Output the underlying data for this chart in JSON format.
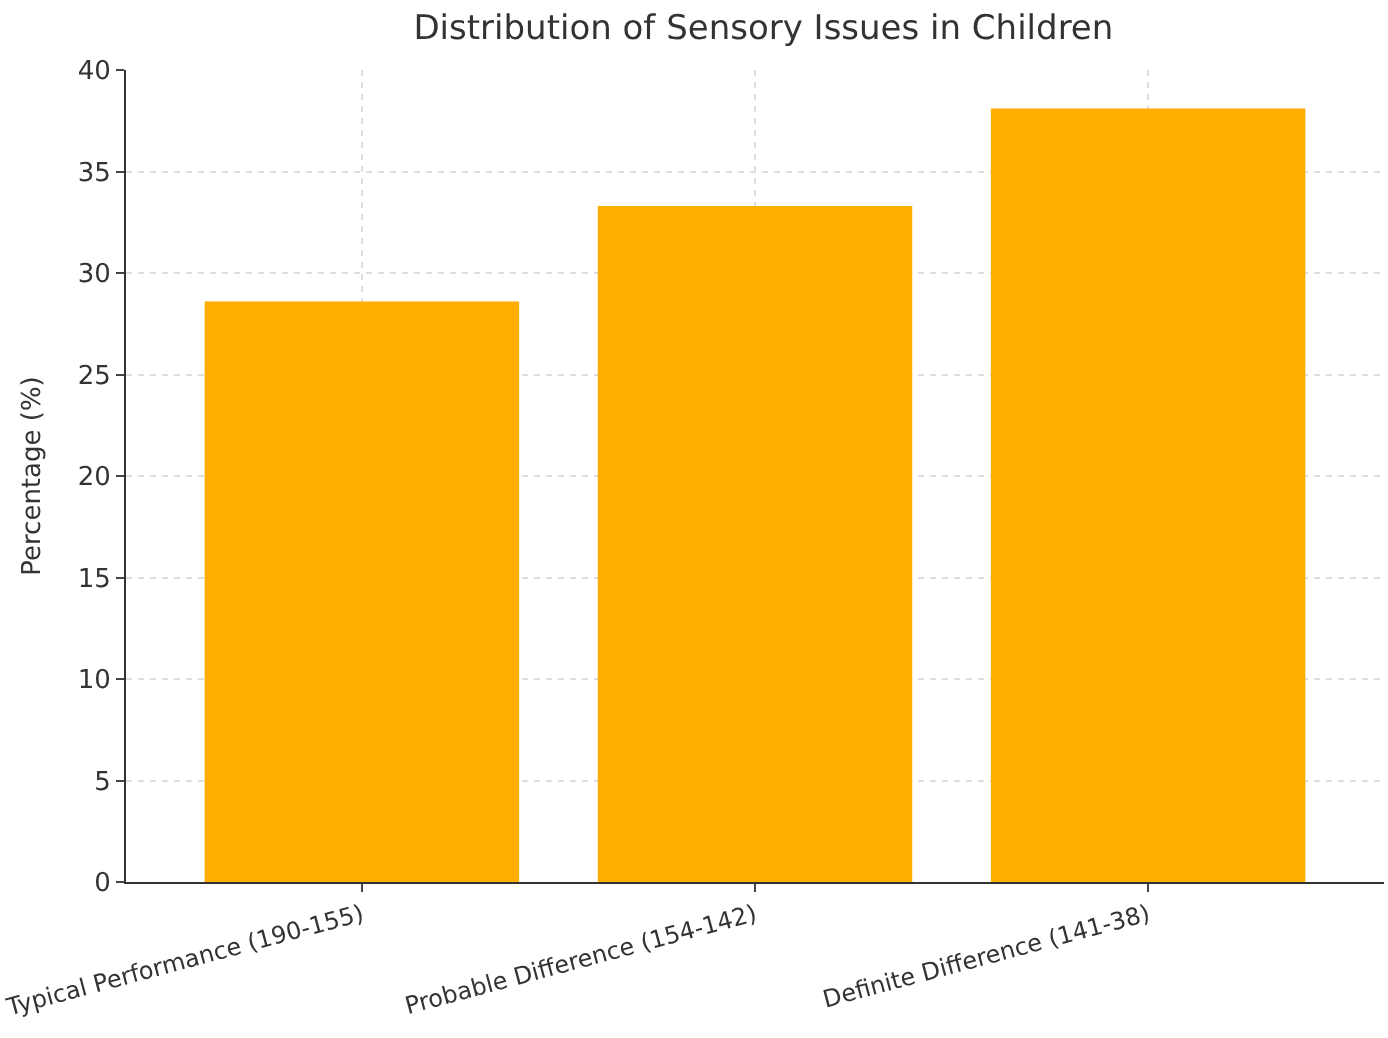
{
  "chart_data": {
    "type": "bar",
    "title": "Distribution of Sensory Issues in Children",
    "ylabel": "Percentage (%)",
    "categories": [
      "Typical Performance (190-155)",
      "Probable Difference (154-142)",
      "Definite Difference (141-38)"
    ],
    "values": [
      28.6,
      33.3,
      38.1
    ],
    "color": "#ffad00",
    "ylim": [
      0,
      40
    ],
    "yticks": [
      0,
      5,
      10,
      15,
      20,
      25,
      30,
      35,
      40
    ],
    "grid": true
  }
}
